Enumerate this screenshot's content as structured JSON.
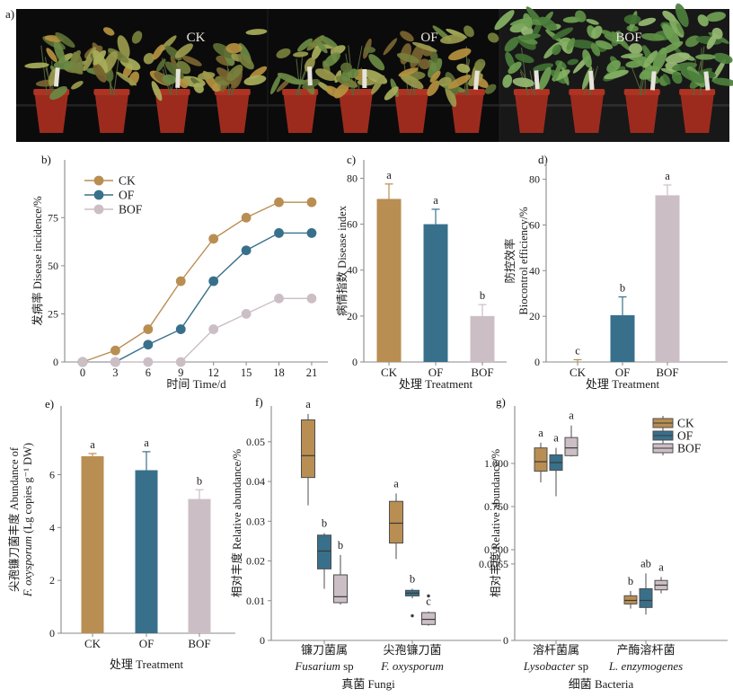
{
  "colors": {
    "ck": "#b98e53",
    "of": "#38708c",
    "bof": "#cbbfc5",
    "axis": "#8a8a8a",
    "text": "#1a1a1a",
    "box_stroke": "#4d4d4d",
    "median": "#3a3a3a",
    "photo_bg": "#0b0b0b",
    "photo_bg_bof": "#181818",
    "pot": "#9c2b1e",
    "pot_rim": "#ae3322",
    "photo_label": "#ece9e2"
  },
  "treatments": [
    {
      "name": "CK",
      "color_key": "ck"
    },
    {
      "name": "OF",
      "color_key": "of"
    },
    {
      "name": "BOF",
      "color_key": "bof"
    }
  ],
  "panel_a": {
    "label": "a)",
    "sections": [
      {
        "name": "CK",
        "health": "wilted"
      },
      {
        "name": "OF",
        "health": "wilted"
      },
      {
        "name": "BOF",
        "health": "healthy"
      }
    ]
  },
  "chart_data": [
    {
      "id": "b",
      "panel_label": "b)",
      "type": "line",
      "x": [
        0,
        3,
        6,
        9,
        12,
        15,
        18,
        21
      ],
      "xlabel": "时间 Time/d",
      "ylabel": "发病率 Disease incidence/%",
      "yticks": [
        0,
        25,
        50,
        75
      ],
      "ylim": [
        0,
        105
      ],
      "grid": false,
      "legend_position": "top-left",
      "series": [
        {
          "name": "CK",
          "color_key": "ck",
          "values": [
            0,
            6,
            17,
            42,
            64,
            75,
            83,
            83
          ]
        },
        {
          "name": "OF",
          "color_key": "of",
          "values": [
            0,
            0,
            9,
            17,
            42,
            58,
            67,
            67
          ]
        },
        {
          "name": "BOF",
          "color_key": "bof",
          "values": [
            0,
            0,
            0,
            0,
            17,
            25,
            33,
            33
          ]
        }
      ]
    },
    {
      "id": "c",
      "panel_label": "c)",
      "type": "bar",
      "categories": [
        "CK",
        "OF",
        "BOF"
      ],
      "values": [
        71,
        60,
        20
      ],
      "errors": [
        6.5,
        6.5,
        5
      ],
      "sig_letters": [
        "a",
        "a",
        "b"
      ],
      "xlabel": "处理 Treatment",
      "ylabel": "病情指数 Disease index",
      "yticks": [
        0,
        20,
        40,
        60,
        80
      ],
      "ylim": [
        0,
        88
      ]
    },
    {
      "id": "d",
      "panel_label": "d)",
      "type": "bar",
      "categories": [
        "CK",
        "OF",
        "BOF"
      ],
      "values": [
        0,
        20.5,
        73
      ],
      "errors": [
        1,
        8,
        4.5
      ],
      "sig_letters": [
        "c",
        "b",
        "a"
      ],
      "xlabel": "处理 Treatment",
      "ylabel_lines": [
        [
          {
            "t": "防控效率"
          }
        ],
        [
          {
            "t": "Biocontrol efficiency/%"
          }
        ]
      ],
      "yticks": [
        0,
        20,
        40,
        60,
        80
      ],
      "ylim": [
        0,
        88.5
      ]
    },
    {
      "id": "e",
      "panel_label": "e)",
      "type": "bar",
      "categories": [
        "CK",
        "OF",
        "BOF"
      ],
      "values": [
        6.7,
        6.17,
        5.08
      ],
      "errors": [
        0.1,
        0.7,
        0.35
      ],
      "sig_letters": [
        "a",
        "a",
        "b"
      ],
      "xlabel": "处理 Treatment",
      "ylabel_lines": [
        [
          {
            "t": "尖孢镰刀菌丰度 Abundance of"
          }
        ],
        [
          {
            "t": "F. oxysporum",
            "i": true
          },
          {
            "t": " (Lg copies g⁻¹ DW)"
          }
        ]
      ],
      "yticks": [
        0,
        2,
        4,
        6
      ],
      "ylim": [
        0,
        8.6
      ]
    },
    {
      "id": "f",
      "panel_label": "f)",
      "type": "boxplot",
      "groups": [
        {
          "cn": "镰刀菌属",
          "latin": [
            {
              "t": "Fusarium",
              "i": true
            },
            {
              "t": " sp"
            }
          ]
        },
        {
          "cn": "尖孢镰刀菌",
          "latin": [
            {
              "t": "F. oxysporum",
              "i": true
            }
          ]
        }
      ],
      "xlabel": "真菌 Fungi",
      "ylabel": "相对丰度 Relative abundance/%",
      "tick_values": [
        0,
        0.01,
        0.02,
        0.03,
        0.04,
        0.05
      ],
      "tick_labels": [
        "0",
        "0.01",
        "0.02",
        "0.03",
        "0.04",
        "0.05"
      ],
      "ylim": [
        0,
        0.059
      ],
      "series": [
        {
          "name": "CK",
          "color_key": "ck",
          "boxes": [
            {
              "lo": 0.034,
              "q1": 0.041,
              "med": 0.0465,
              "q3": 0.0555,
              "hi": 0.057,
              "letter": "a"
            },
            {
              "lo": 0.0205,
              "q1": 0.0245,
              "med": 0.0295,
              "q3": 0.035,
              "hi": 0.037,
              "letter": "a"
            }
          ]
        },
        {
          "name": "OF",
          "color_key": "of",
          "boxes": [
            {
              "lo": 0.013,
              "q1": 0.018,
              "med": 0.0225,
              "q3": 0.0265,
              "hi": 0.027,
              "letter": "b"
            },
            {
              "lo": 0.0106,
              "q1": 0.0112,
              "med": 0.0119,
              "q3": 0.0126,
              "hi": 0.013,
              "letter": "b",
              "outliers": [
                0.0062
              ]
            }
          ]
        },
        {
          "name": "BOF",
          "color_key": "bof",
          "boxes": [
            {
              "lo": 0.009,
              "q1": 0.0095,
              "med": 0.011,
              "q3": 0.0165,
              "hi": 0.0215,
              "letter": "b"
            },
            {
              "lo": 0.0037,
              "q1": 0.004,
              "med": 0.0053,
              "q3": 0.007,
              "hi": 0.0073,
              "letter": "c",
              "outliers": [
                0.0112
              ]
            }
          ]
        }
      ]
    },
    {
      "id": "g",
      "panel_label": "g)",
      "type": "boxplot",
      "groups": [
        {
          "cn": "溶杆菌属",
          "latin": [
            {
              "t": "Lysobacter",
              "i": true
            },
            {
              "t": " sp"
            }
          ]
        },
        {
          "cn": "产酶溶杆菌",
          "latin": [
            {
              "t": "L. enzymogenes",
              "i": true
            }
          ]
        }
      ],
      "xlabel": "细菌 Bacteria",
      "ylabel": "相对丰度 Relative abundance/%",
      "tick_values": [
        0,
        0.0065,
        0.5,
        0.75,
        1.0
      ],
      "tick_labels": [
        "0",
        "0.0065",
        "0.500",
        "0.750",
        "1.000"
      ],
      "axis_breaks": [
        [
          0,
          0.0065,
          0.326
        ],
        [
          0.0065,
          0.5,
          0.061
        ],
        [
          0.5,
          1.333,
          0.613
        ]
      ],
      "legend": [
        "CK",
        "OF",
        "BOF"
      ],
      "series": [
        {
          "name": "CK",
          "color_key": "ck",
          "boxes": [
            {
              "lo": 0.89,
              "q1": 0.955,
              "med": 1.01,
              "q3": 1.09,
              "hi": 1.12,
              "letter": "a"
            },
            {
              "lo": 0.0027,
              "q1": 0.0031,
              "med": 0.0034,
              "q3": 0.0038,
              "hi": 0.0042,
              "letter": "b"
            }
          ]
        },
        {
          "name": "OF",
          "color_key": "of",
          "boxes": [
            {
              "lo": 0.81,
              "q1": 0.96,
              "med": 1.005,
              "q3": 1.05,
              "hi": 1.09,
              "letter": "a"
            },
            {
              "lo": 0.0022,
              "q1": 0.0028,
              "med": 0.0034,
              "q3": 0.0044,
              "hi": 0.0057,
              "letter": "ab"
            }
          ]
        },
        {
          "name": "BOF",
          "color_key": "bof",
          "boxes": [
            {
              "lo": 1.04,
              "q1": 1.045,
              "med": 1.09,
              "q3": 1.15,
              "hi": 1.22,
              "letter": "a"
            },
            {
              "lo": 0.004,
              "q1": 0.0043,
              "med": 0.0047,
              "q3": 0.0051,
              "hi": 0.0054,
              "letter": "a"
            }
          ]
        }
      ]
    }
  ]
}
